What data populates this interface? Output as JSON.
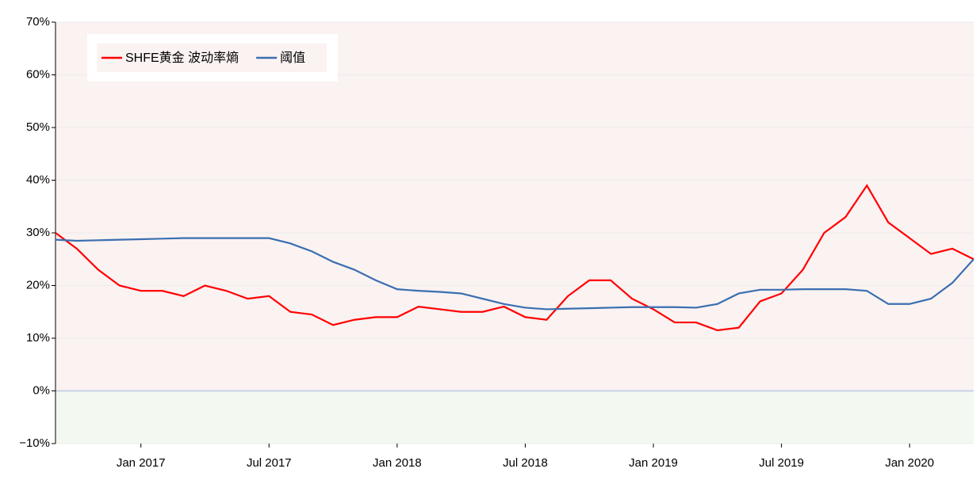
{
  "chart_data": {
    "type": "line",
    "x": [
      "2016-09",
      "2016-10",
      "2016-11",
      "2016-12",
      "2017-01",
      "2017-02",
      "2017-03",
      "2017-04",
      "2017-05",
      "2017-06",
      "2017-07",
      "2017-08",
      "2017-09",
      "2017-10",
      "2017-11",
      "2017-12",
      "2018-01",
      "2018-02",
      "2018-03",
      "2018-04",
      "2018-05",
      "2018-06",
      "2018-07",
      "2018-08",
      "2018-09",
      "2018-10",
      "2018-11",
      "2018-12",
      "2019-01",
      "2019-02",
      "2019-03",
      "2019-04",
      "2019-05",
      "2019-06",
      "2019-07",
      "2019-08",
      "2019-09",
      "2019-10",
      "2019-11",
      "2019-12",
      "2020-01",
      "2020-02",
      "2020-03",
      "2020-04"
    ],
    "series": [
      {
        "name": "SHFE黄金 波动率熵",
        "color": "#ff0000",
        "values": [
          30,
          27,
          23,
          20,
          19,
          19,
          18,
          20,
          19,
          17.5,
          18,
          15,
          14.5,
          12.5,
          13.5,
          14,
          14,
          16,
          15.5,
          15,
          15,
          16,
          14,
          13.5,
          18,
          21,
          21,
          17.5,
          15.5,
          13,
          13,
          11.5,
          12,
          17,
          18.5,
          23,
          30,
          33,
          39,
          32,
          29,
          26,
          27,
          25
        ]
      },
      {
        "name": "阈值",
        "color": "#3a6fb0",
        "values": [
          28.7,
          28.5,
          28.6,
          28.7,
          28.8,
          28.9,
          29,
          29,
          29,
          29,
          29,
          28,
          26.5,
          24.5,
          23,
          21,
          19.3,
          19,
          18.8,
          18.5,
          17.5,
          16.5,
          15.8,
          15.5,
          15.6,
          15.7,
          15.8,
          15.9,
          15.9,
          15.9,
          15.8,
          16.5,
          18.5,
          19.2,
          19.2,
          19.3,
          19.3,
          19.3,
          19,
          16.5,
          16.5,
          17.5,
          20.5,
          25
        ]
      }
    ],
    "xlim": [
      "2016-09",
      "2020-04"
    ],
    "xticks": [
      {
        "value": "2017-01",
        "label": "Jan 2017"
      },
      {
        "value": "2017-07",
        "label": "Jul 2017"
      },
      {
        "value": "2018-01",
        "label": "Jan 2018"
      },
      {
        "value": "2018-07",
        "label": "Jul 2018"
      },
      {
        "value": "2019-01",
        "label": "Jan 2019"
      },
      {
        "value": "2019-07",
        "label": "Jul 2019"
      },
      {
        "value": "2020-01",
        "label": "Jan 2020"
      }
    ],
    "ylim": [
      -10,
      70
    ],
    "yticks": [
      {
        "value": -10,
        "label": "−10%"
      },
      {
        "value": 0,
        "label": "0%"
      },
      {
        "value": 10,
        "label": "10%"
      },
      {
        "value": 20,
        "label": "20%"
      },
      {
        "value": 30,
        "label": "30%"
      },
      {
        "value": 40,
        "label": "40%"
      },
      {
        "value": 50,
        "label": "50%"
      },
      {
        "value": 60,
        "label": "60%"
      },
      {
        "value": 70,
        "label": "70%"
      }
    ],
    "grid": true
  }
}
